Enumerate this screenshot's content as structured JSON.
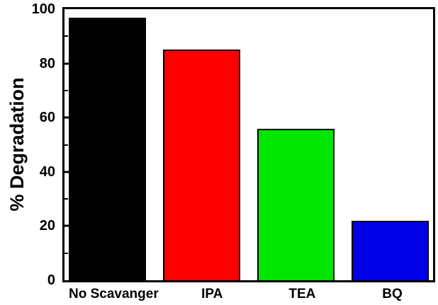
{
  "chart_data": {
    "type": "bar",
    "title": "",
    "categories": [
      "No Scavanger",
      "IPA",
      "TEA",
      "BQ"
    ],
    "values": [
      97,
      85,
      56,
      22
    ],
    "colors": [
      "#000000",
      "#ff0000",
      "#00e600",
      "#0000e6"
    ],
    "xlabel": "",
    "ylabel": "% Degradation",
    "ylim": [
      0,
      100
    ],
    "yticks": [
      0,
      20,
      40,
      60,
      80,
      100
    ],
    "yticks_minor": [
      10,
      30,
      50,
      70,
      90
    ],
    "grid": false,
    "legend": false,
    "axis_color": "#000000",
    "background_color": "#ffffff"
  }
}
